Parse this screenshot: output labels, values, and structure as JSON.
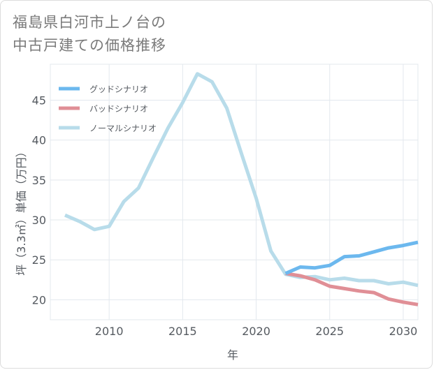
{
  "title_lines": [
    "福島県白河市上ノ台の",
    "中古戸建ての価格推移"
  ],
  "chart_data": {
    "type": "line",
    "title": "福島県白河市上ノ台の中古戸建ての価格推移",
    "xlabel": "年",
    "ylabel": "坪（3.3㎡）単価（万円）",
    "xlim": [
      2006,
      2031
    ],
    "ylim": [
      17.5,
      49.5
    ],
    "xticks": [
      2010,
      2015,
      2020,
      2025,
      2030
    ],
    "yticks": [
      20,
      25,
      30,
      35,
      40,
      45
    ],
    "legend_position": "top-left",
    "series": [
      {
        "name": "グッドシナリオ",
        "color": "#6cb8ee",
        "x": [
          2022,
          2023,
          2024,
          2025,
          2026,
          2027,
          2028,
          2029,
          2030,
          2031
        ],
        "values": [
          23.3,
          24.1,
          24.0,
          24.3,
          25.4,
          25.5,
          26.0,
          26.5,
          26.8,
          27.2
        ]
      },
      {
        "name": "バッドシナリオ",
        "color": "#e08f96",
        "x": [
          2022,
          2023,
          2024,
          2025,
          2026,
          2027,
          2028,
          2029,
          2030,
          2031
        ],
        "values": [
          23.3,
          23.0,
          22.5,
          21.7,
          21.4,
          21.1,
          20.9,
          20.1,
          19.7,
          19.4
        ]
      },
      {
        "name": "ノーマルシナリオ",
        "color": "#b8dcea",
        "x": [
          2007,
          2008,
          2009,
          2010,
          2011,
          2012,
          2013,
          2014,
          2015,
          2016,
          2017,
          2018,
          2019,
          2020,
          2021,
          2022,
          2023,
          2024,
          2025,
          2026,
          2027,
          2028,
          2029,
          2030,
          2031
        ],
        "values": [
          30.6,
          29.8,
          28.8,
          29.2,
          32.3,
          34.0,
          37.8,
          41.5,
          44.7,
          48.3,
          47.3,
          44.0,
          38.3,
          32.7,
          26.1,
          23.2,
          22.8,
          22.9,
          22.5,
          22.7,
          22.4,
          22.4,
          22.0,
          22.2,
          21.8
        ]
      }
    ]
  }
}
